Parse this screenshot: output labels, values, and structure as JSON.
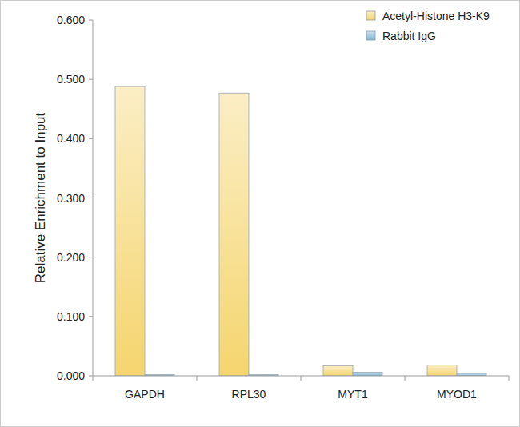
{
  "chart_data": {
    "type": "bar",
    "categories": [
      "GAPDH",
      "RPL30",
      "MYT1",
      "MYOD1"
    ],
    "series": [
      {
        "name": "Acetyl-Histone H3-K9",
        "color": "#f5d56e",
        "values": [
          0.488,
          0.477,
          0.017,
          0.018
        ]
      },
      {
        "name": "Rabbit IgG",
        "color": "#7fb5d6",
        "values": [
          0.002,
          0.002,
          0.006,
          0.004
        ]
      }
    ],
    "y_label": "Relative Enrichment to Input",
    "ylim": [
      0,
      0.6
    ],
    "yticks": [
      {
        "value": 0,
        "label": "0.000"
      },
      {
        "value": 0.1,
        "label": "0.100"
      },
      {
        "value": 0.2,
        "label": "0.200"
      },
      {
        "value": 0.3,
        "label": "0.300"
      },
      {
        "value": 0.4,
        "label": "0.400"
      },
      {
        "value": 0.5,
        "label": "0.500"
      },
      {
        "value": 0.6,
        "label": "0.600"
      }
    ],
    "grid": false,
    "legend": "top-right"
  }
}
